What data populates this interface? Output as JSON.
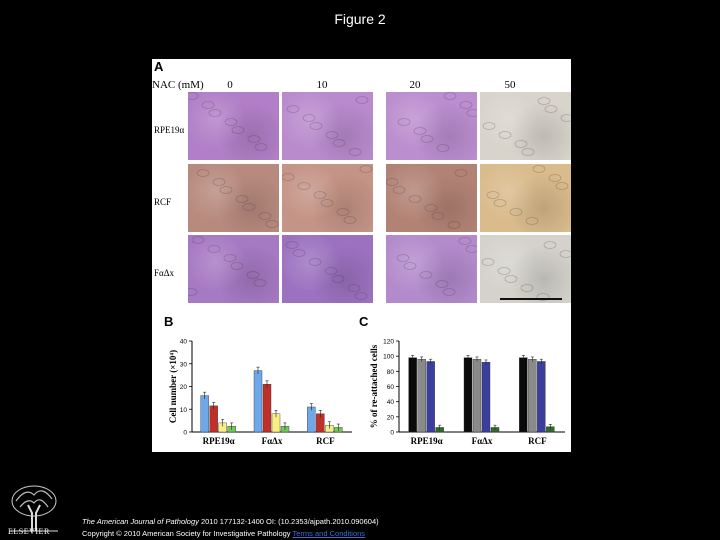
{
  "slide": {
    "title": "Figure 2"
  },
  "panel_a": {
    "letter": "A",
    "nac_label": "NAC (mM)",
    "concentrations": [
      "0",
      "10",
      "20",
      "50"
    ],
    "rows": [
      "RPE19α",
      "RCF",
      "FαΔx"
    ],
    "tiles": [
      [
        "#b17fc7",
        "#b98bcd",
        "#bb8ecf",
        "#d8d4cc"
      ],
      [
        "#b88a7e",
        "#c49486",
        "#b28375",
        "#d9bb8c"
      ],
      [
        "#a679c3",
        "#9c72c0",
        "#b38bcc",
        "#d4d2cb"
      ]
    ]
  },
  "panel_b": {
    "letter": "B"
  },
  "panel_c": {
    "letter": "C"
  },
  "chart_data": [
    {
      "type": "bar",
      "panel": "B",
      "ylabel": "Cell number (×10⁴)",
      "ylim": [
        0,
        40
      ],
      "yticks": [
        "0",
        "10",
        "20",
        "30",
        "40"
      ],
      "categories": [
        "RPE19α",
        "FαΔx",
        "RCF"
      ],
      "colors": [
        "#6fa8e8",
        "#c0302b",
        "#f7ef86",
        "#74c956"
      ],
      "series": [
        {
          "values": [
            16,
            27,
            11
          ]
        },
        {
          "values": [
            11.5,
            21,
            8
          ]
        },
        {
          "values": [
            4,
            8,
            3
          ]
        },
        {
          "values": [
            2.5,
            2.5,
            2
          ]
        }
      ]
    },
    {
      "type": "bar",
      "panel": "C",
      "ylabel": "% of re-attached cells",
      "ylim": [
        0,
        120
      ],
      "yticks": [
        "0",
        "20",
        "40",
        "60",
        "80",
        "100",
        "120"
      ],
      "categories": [
        "RPE19α",
        "FαΔx",
        "RCF"
      ],
      "colors": [
        "#0a0a0a",
        "#8a8a8a",
        "#3a3f9e",
        "#2f6a2a"
      ],
      "series": [
        {
          "values": [
            98,
            98,
            98
          ]
        },
        {
          "values": [
            96,
            96,
            96
          ]
        },
        {
          "values": [
            93,
            92,
            93
          ]
        },
        {
          "values": [
            6,
            6,
            7
          ]
        }
      ]
    }
  ],
  "footer": {
    "journal": "The American Journal of Pathology",
    "citation": " 2010 177132-1400 OI: (10.2353/ajpath.2010.090604)",
    "copyright": "Copyright © 2010 American Society for Investigative Pathology",
    "terms": "Terms and Conditions",
    "logo_text": "ELSEVIER"
  },
  "colors": {
    "background": "#000000",
    "link": "#3b6fd6"
  }
}
